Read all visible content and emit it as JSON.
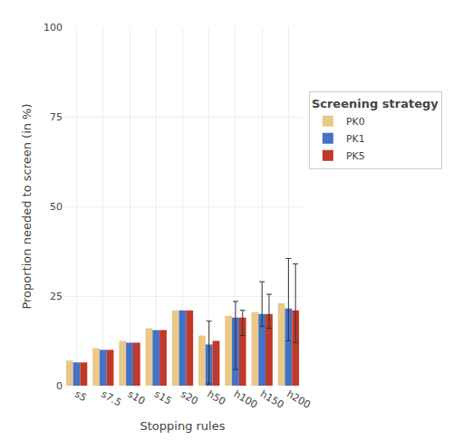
{
  "chart_data": {
    "type": "bar",
    "xlabel": "Stopping rules",
    "ylabel": "Proportion needed to screen (in %)",
    "categories": [
      "s5",
      "s7.5",
      "s10",
      "s15",
      "s20",
      "h50",
      "h100",
      "h150",
      "h200"
    ],
    "series": [
      {
        "name": "PK0",
        "color": "#E8C98A",
        "values": [
          7.0,
          10.5,
          12.5,
          16.0,
          21.0,
          14.0,
          19.5,
          20.5,
          23.0
        ],
        "err_low": [
          0.0,
          0.0,
          0.0,
          0.0,
          0.0,
          0.0,
          0.0,
          0.0,
          0.0
        ],
        "err_high": [
          0.0,
          0.0,
          0.0,
          0.0,
          0.0,
          0.0,
          0.0,
          0.0,
          0.0
        ]
      },
      {
        "name": "PK1",
        "color": "#4472C4",
        "values": [
          6.5,
          10.0,
          12.0,
          15.5,
          21.0,
          11.5,
          19.0,
          20.0,
          21.5
        ],
        "err_low": [
          0.0,
          0.0,
          0.0,
          0.0,
          0.0,
          11.0,
          14.5,
          3.5,
          9.0
        ],
        "err_high": [
          0.0,
          0.0,
          0.0,
          0.0,
          0.0,
          6.5,
          4.5,
          9.0,
          14.0
        ]
      },
      {
        "name": "PK5",
        "color": "#C0392B",
        "values": [
          6.5,
          10.0,
          12.0,
          15.5,
          21.0,
          12.5,
          19.0,
          20.0,
          21.0
        ],
        "err_low": [
          0.0,
          0.0,
          0.0,
          0.0,
          0.0,
          0.0,
          5.0,
          4.0,
          9.0
        ],
        "err_high": [
          0.0,
          0.0,
          0.0,
          0.0,
          0.0,
          0.0,
          2.0,
          5.5,
          13.0
        ]
      }
    ],
    "legend_title": "Screening strategy",
    "legend": "right",
    "ylim": [
      0,
      100
    ],
    "yticks": [
      0,
      25,
      50,
      75,
      100
    ],
    "grid": true
  }
}
